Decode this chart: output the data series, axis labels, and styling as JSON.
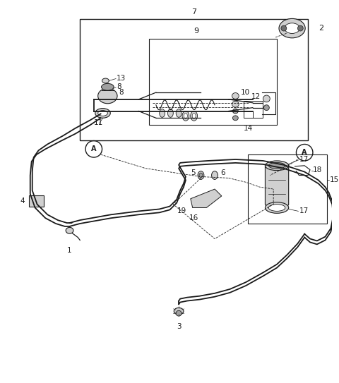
{
  "bg_color": "#ffffff",
  "line_color": "#1a1a1a",
  "fig_width": 4.8,
  "fig_height": 5.43,
  "dpi": 100,
  "gray_light": "#d0d0d0",
  "gray_mid": "#a0a0a0",
  "gray_dark": "#707070"
}
